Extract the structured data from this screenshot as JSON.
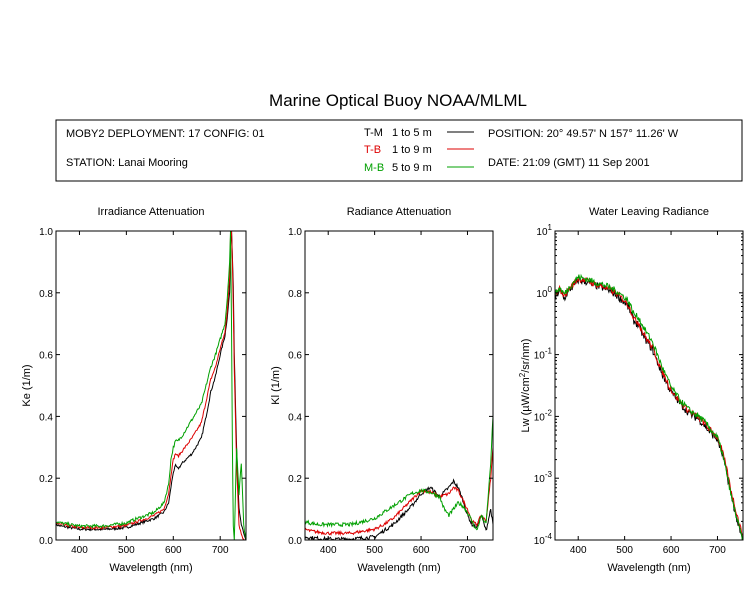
{
  "title": "Marine Optical Buoy NOAA/MLML",
  "info": {
    "deployment": "MOBY2 DEPLOYMENT: 17 CONFIG: 01",
    "station": "STATION: Lanai Mooring",
    "position": "POSITION: 20° 49.57' N   157° 11.26' W",
    "date": "DATE: 21:09 (GMT) 11 Sep 2001"
  },
  "legend": [
    {
      "code": "T-M",
      "range": "1 to 5  m",
      "color": "#000000",
      "code_color": "#000000"
    },
    {
      "code": "T-B",
      "range": "1 to 9  m",
      "color": "#dd0000",
      "code_color": "#dd0000"
    },
    {
      "code": "M-B",
      "range": "5 to 9  m",
      "color": "#00a000",
      "code_color": "#00a000"
    }
  ],
  "chart_data": [
    {
      "type": "line",
      "title": "Irradiance Attenuation",
      "xlabel": "Wavelength (nm)",
      "ylabel": "Ke  (1/m)",
      "xlim": [
        350,
        755
      ],
      "ylim": [
        0,
        1.0
      ],
      "xticks": [
        400,
        500,
        600,
        700
      ],
      "yticks": [
        0.0,
        0.2,
        0.4,
        0.6,
        0.8,
        1.0
      ],
      "ytick_labels": [
        "0.0",
        "0.2",
        "0.4",
        "0.6",
        "0.8",
        "1.0"
      ],
      "series": [
        {
          "name": "T-M",
          "color": "#000000",
          "noise": 0.004,
          "x": [
            350,
            360,
            380,
            400,
            450,
            500,
            520,
            540,
            560,
            580,
            590,
            595,
            600,
            605,
            610,
            620,
            640,
            660,
            670,
            680,
            690,
            700,
            710,
            715,
            720,
            722,
            724,
            726,
            728,
            730,
            735,
            740,
            745,
            750,
            755
          ],
          "y": [
            0.05,
            0.045,
            0.04,
            0.035,
            0.034,
            0.04,
            0.05,
            0.06,
            0.07,
            0.09,
            0.12,
            0.17,
            0.22,
            0.24,
            0.23,
            0.25,
            0.28,
            0.33,
            0.4,
            0.48,
            0.53,
            0.6,
            0.66,
            0.72,
            0.8,
            0.95,
            1.0,
            0.92,
            0.82,
            0.6,
            0.3,
            0.1,
            0.05,
            0.02,
            0.0
          ]
        },
        {
          "name": "T-B",
          "color": "#dd0000",
          "noise": 0.004,
          "x": [
            350,
            360,
            380,
            400,
            450,
            500,
            520,
            540,
            560,
            580,
            590,
            595,
            600,
            605,
            610,
            620,
            640,
            660,
            670,
            680,
            690,
            700,
            710,
            715,
            720,
            722,
            724,
            726,
            728,
            730,
            735,
            740,
            745,
            750,
            755
          ],
          "y": [
            0.055,
            0.05,
            0.045,
            0.04,
            0.04,
            0.047,
            0.058,
            0.068,
            0.08,
            0.1,
            0.15,
            0.21,
            0.26,
            0.28,
            0.27,
            0.29,
            0.33,
            0.38,
            0.45,
            0.52,
            0.56,
            0.62,
            0.67,
            0.74,
            0.85,
            0.98,
            1.0,
            0.9,
            0.75,
            0.55,
            0.25,
            0.05,
            0.02,
            0.0,
            0.0
          ]
        },
        {
          "name": "M-B",
          "color": "#00a000",
          "noise": 0.005,
          "x": [
            350,
            360,
            380,
            400,
            450,
            500,
            520,
            540,
            560,
            580,
            590,
            595,
            600,
            605,
            610,
            620,
            640,
            660,
            670,
            680,
            690,
            700,
            710,
            715,
            720,
            722,
            724,
            726,
            728,
            730,
            735,
            740,
            745,
            750,
            755
          ],
          "y": [
            0.06,
            0.055,
            0.05,
            0.045,
            0.045,
            0.055,
            0.068,
            0.078,
            0.09,
            0.12,
            0.18,
            0.26,
            0.3,
            0.32,
            0.32,
            0.34,
            0.39,
            0.44,
            0.5,
            0.56,
            0.6,
            0.65,
            0.7,
            0.78,
            0.9,
            1.0,
            0.7,
            0.3,
            0.05,
            0.0,
            0.3,
            0.15,
            0.25,
            0.05,
            0.0
          ]
        }
      ]
    },
    {
      "type": "line",
      "title": "Radiance Attenuation",
      "xlabel": "Wavelength (nm)",
      "ylabel": "Kl  (1/m)",
      "xlim": [
        350,
        755
      ],
      "ylim": [
        0,
        1.0
      ],
      "xticks": [
        400,
        500,
        600,
        700
      ],
      "yticks": [
        0.0,
        0.2,
        0.4,
        0.6,
        0.8,
        1.0
      ],
      "ytick_labels": [
        "0.0",
        "0.2",
        "0.4",
        "0.6",
        "0.8",
        "1.0"
      ],
      "series": [
        {
          "name": "T-M",
          "color": "#000000",
          "noise": 0.006,
          "x": [
            350,
            360,
            380,
            400,
            450,
            500,
            520,
            540,
            560,
            580,
            600,
            620,
            640,
            660,
            670,
            680,
            690,
            700,
            710,
            720,
            730,
            740,
            750,
            755
          ],
          "y": [
            0.01,
            0.008,
            0.005,
            0.003,
            0.003,
            0.01,
            0.03,
            0.05,
            0.08,
            0.11,
            0.15,
            0.17,
            0.14,
            0.17,
            0.19,
            0.17,
            0.13,
            0.08,
            0.05,
            0.04,
            0.08,
            0.03,
            0.1,
            0.05
          ]
        },
        {
          "name": "T-B",
          "color": "#dd0000",
          "noise": 0.005,
          "x": [
            350,
            360,
            380,
            400,
            450,
            500,
            520,
            540,
            560,
            580,
            600,
            620,
            640,
            660,
            670,
            680,
            690,
            700,
            710,
            720,
            730,
            740,
            750,
            755
          ],
          "y": [
            0.035,
            0.03,
            0.025,
            0.022,
            0.022,
            0.035,
            0.05,
            0.07,
            0.1,
            0.13,
            0.16,
            0.155,
            0.14,
            0.15,
            0.17,
            0.16,
            0.13,
            0.1,
            0.06,
            0.05,
            0.08,
            0.06,
            0.2,
            0.3
          ]
        },
        {
          "name": "M-B",
          "color": "#00a000",
          "noise": 0.006,
          "x": [
            350,
            360,
            380,
            400,
            450,
            500,
            520,
            540,
            560,
            580,
            600,
            620,
            640,
            650,
            660,
            670,
            680,
            690,
            700,
            710,
            720,
            730,
            740,
            750,
            755
          ],
          "y": [
            0.06,
            0.055,
            0.05,
            0.05,
            0.05,
            0.07,
            0.09,
            0.11,
            0.13,
            0.15,
            0.16,
            0.155,
            0.14,
            0.1,
            0.08,
            0.1,
            0.12,
            0.11,
            0.09,
            0.06,
            0.03,
            0.08,
            0.05,
            0.25,
            0.4
          ]
        }
      ]
    },
    {
      "type": "line",
      "title": "Water Leaving Radiance",
      "xlabel": "Wavelength (nm)",
      "ylabel_parts": [
        "Lw  (µW/cm",
        "2",
        "/sr/nm)"
      ],
      "xlim": [
        350,
        755
      ],
      "ylim": [
        0.0001,
        10
      ],
      "log_y": true,
      "xticks": [
        400,
        500,
        600,
        700
      ],
      "yticks": [
        0.0001,
        0.001,
        0.01,
        0.1,
        1,
        10
      ],
      "ytick_labels": [
        [
          "10",
          "-4"
        ],
        [
          "10",
          "-3"
        ],
        [
          "10",
          "-2"
        ],
        [
          "10",
          "-1"
        ],
        [
          "10",
          "0"
        ],
        [
          "10",
          "1"
        ]
      ],
      "series": [
        {
          "name": "T-M",
          "color": "#000000",
          "noise": 0.06,
          "x": [
            350,
            360,
            370,
            380,
            390,
            400,
            420,
            440,
            460,
            480,
            500,
            510,
            520,
            530,
            540,
            560,
            580,
            600,
            620,
            640,
            660,
            670,
            680,
            690,
            700,
            710,
            720,
            730,
            740,
            750,
            755
          ],
          "y": [
            0.8,
            1.1,
            0.8,
            1.1,
            1.3,
            1.6,
            1.5,
            1.3,
            1.15,
            0.95,
            0.7,
            0.55,
            0.35,
            0.3,
            0.2,
            0.12,
            0.05,
            0.025,
            0.016,
            0.011,
            0.009,
            0.0075,
            0.006,
            0.005,
            0.0042,
            0.0025,
            0.0012,
            0.0005,
            0.00025,
            0.00012,
            0.0001
          ]
        },
        {
          "name": "T-B",
          "color": "#dd0000",
          "noise": 0.05,
          "x": [
            350,
            360,
            370,
            380,
            390,
            400,
            420,
            440,
            460,
            480,
            500,
            510,
            520,
            530,
            540,
            560,
            580,
            600,
            620,
            640,
            660,
            670,
            680,
            690,
            700,
            710,
            720,
            730,
            740,
            750,
            755
          ],
          "y": [
            0.9,
            1.15,
            0.9,
            1.15,
            1.4,
            1.7,
            1.55,
            1.35,
            1.2,
            1.0,
            0.75,
            0.6,
            0.38,
            0.33,
            0.22,
            0.13,
            0.055,
            0.027,
            0.017,
            0.012,
            0.0095,
            0.008,
            0.0065,
            0.0055,
            0.0046,
            0.0028,
            0.0014,
            0.0006,
            0.0003,
            0.00015,
            0.00012
          ]
        },
        {
          "name": "M-B",
          "color": "#00a000",
          "noise": 0.05,
          "x": [
            350,
            360,
            370,
            380,
            390,
            400,
            420,
            440,
            460,
            480,
            500,
            510,
            520,
            530,
            540,
            560,
            580,
            600,
            620,
            640,
            660,
            670,
            680,
            690,
            700,
            710,
            720,
            730,
            740,
            750,
            755
          ],
          "y": [
            0.95,
            1.2,
            0.95,
            1.2,
            1.5,
            1.8,
            1.65,
            1.45,
            1.3,
            1.1,
            0.85,
            0.7,
            0.45,
            0.4,
            0.28,
            0.16,
            0.065,
            0.03,
            0.018,
            0.0125,
            0.01,
            0.0085,
            0.007,
            0.0055,
            0.0045,
            0.0026,
            0.0012,
            0.0005,
            0.00025,
            0.00013,
            0.0001
          ]
        }
      ]
    }
  ]
}
